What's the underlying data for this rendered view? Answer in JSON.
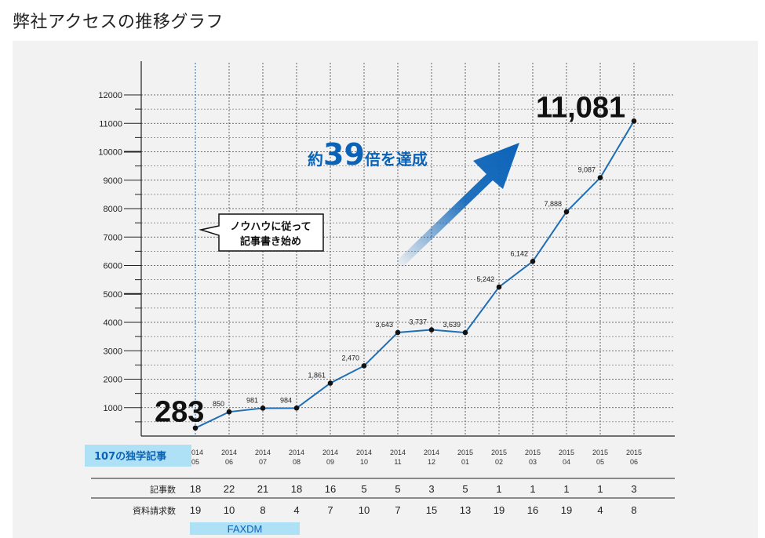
{
  "page": {
    "title": "弊社アクセスの推移グラフ"
  },
  "callout": {
    "line1": "ノウハウに従って",
    "line2": "記事書き始め"
  },
  "headline": {
    "prefix": "約",
    "number": "39",
    "suffix": "倍を達成"
  },
  "badges": {
    "articles": "107の独学記事",
    "faxdm": "FAXDM"
  },
  "table": {
    "row_labels": [
      "記事数",
      "資料請求数"
    ],
    "articles": [
      18,
      22,
      21,
      18,
      16,
      5,
      5,
      3,
      5,
      1,
      1,
      1,
      1,
      3
    ],
    "requests": [
      19,
      10,
      8,
      4,
      7,
      10,
      7,
      15,
      13,
      19,
      16,
      19,
      4,
      8
    ]
  },
  "colors": {
    "line": "#1f6eb5",
    "accent": "#0b63b8",
    "badge": "#aee0f6",
    "grid": "#444444",
    "panel": "#f2f2f2"
  },
  "chart_data": {
    "type": "line",
    "title": "",
    "xlabel": "",
    "ylabel": "",
    "ylim": [
      0,
      12000
    ],
    "yticks": [
      1000,
      2000,
      3000,
      4000,
      5000,
      6000,
      7000,
      8000,
      9000,
      10000,
      11000,
      12000
    ],
    "categories": [
      [
        "2014",
        "05"
      ],
      [
        "2014",
        "06"
      ],
      [
        "2014",
        "07"
      ],
      [
        "2014",
        "08"
      ],
      [
        "2014",
        "09"
      ],
      [
        "2014",
        "10"
      ],
      [
        "2014",
        "11"
      ],
      [
        "2014",
        "12"
      ],
      [
        "2015",
        "01"
      ],
      [
        "2015",
        "02"
      ],
      [
        "2015",
        "03"
      ],
      [
        "2015",
        "04"
      ],
      [
        "2015",
        "05"
      ],
      [
        "2015",
        "06"
      ]
    ],
    "values": [
      283,
      850,
      981,
      984,
      1861,
      2470,
      3643,
      3737,
      3639,
      5242,
      6142,
      7888,
      9087,
      11081
    ],
    "labels": [
      "283",
      "850",
      "981",
      "984",
      "1,861",
      "2,470",
      "3,643",
      "3,737",
      "3,639",
      "5,242",
      "6,142",
      "7,888",
      "9,087",
      "11,081"
    ],
    "grid": true
  }
}
